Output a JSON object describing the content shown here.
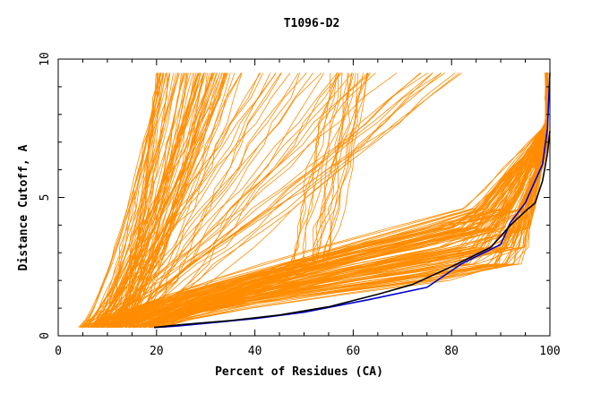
{
  "chart_data": {
    "type": "line",
    "title": "T1096-D2",
    "xlabel": "Percent of Residues (CA)",
    "ylabel": "Distance Cutoff, A",
    "xlim": [
      0,
      100
    ],
    "ylim": [
      0,
      10
    ],
    "x_ticks": [
      "0",
      "20",
      "40",
      "60",
      "80",
      "100"
    ],
    "y_ticks": [
      "0",
      "5",
      "10"
    ],
    "grid": false,
    "colors": {
      "many_models": "#ff8c00",
      "black_model": "#000000",
      "blue_model": "#0000cc"
    },
    "series": [
      {
        "color": "#0000cc",
        "x": [
          19.5,
          24,
          30,
          40,
          50,
          63,
          75,
          82,
          90,
          92,
          95,
          97,
          98.5,
          99.5,
          100
        ],
        "y": [
          0.3,
          0.35,
          0.45,
          0.62,
          0.85,
          1.3,
          1.75,
          2.6,
          3.3,
          4.1,
          4.8,
          5.6,
          6.2,
          7.5,
          9.5
        ]
      },
      {
        "color": "#000000",
        "x": [
          19.5,
          25,
          35,
          45,
          55,
          65,
          72,
          80,
          88,
          92,
          95,
          97,
          98.5,
          99.5,
          100
        ],
        "y": [
          0.3,
          0.4,
          0.55,
          0.75,
          1.05,
          1.5,
          1.85,
          2.5,
          3.2,
          4.0,
          4.5,
          4.8,
          5.6,
          6.6,
          7.4
        ]
      }
    ]
  }
}
